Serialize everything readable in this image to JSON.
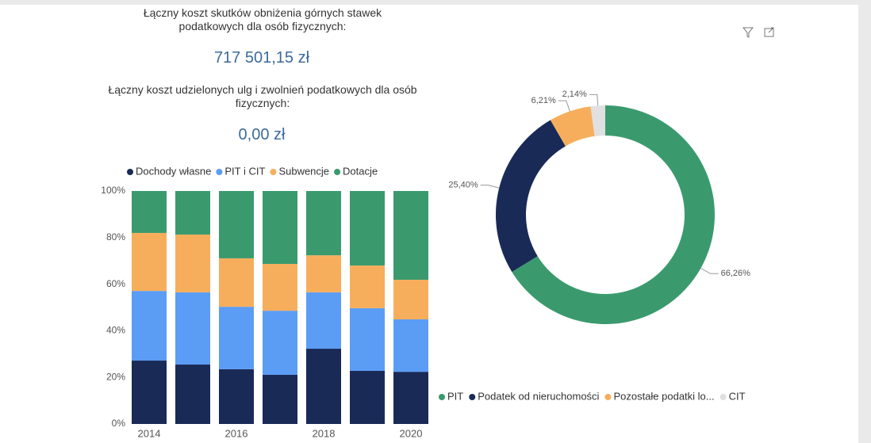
{
  "kpis": [
    {
      "label": "Łączny koszt skutków obniżenia górnych stawek podatkowych dla osób fizycznych:",
      "value": "717 501,15 zł"
    },
    {
      "label": "Łączny koszt udzielonych ulg i zwolnień podatkowych dla osób fizycznych:",
      "value": "0,00 zł"
    }
  ],
  "chart_data": [
    {
      "type": "stacked_bar",
      "categories": [
        "2014",
        null,
        "2016",
        null,
        "2018",
        null,
        "2020"
      ],
      "series": [
        {
          "name": "Dochody własne",
          "color": "#192a57",
          "values": [
            27.2,
            25.5,
            23.5,
            21.1,
            32.3,
            22.8,
            22.4
          ]
        },
        {
          "name": "PIT i CIT",
          "color": "#5b9cf5",
          "values": [
            29.9,
            31.0,
            26.8,
            27.5,
            24.2,
            26.9,
            22.5
          ]
        },
        {
          "name": "Subwencje",
          "color": "#f7ae5c",
          "values": [
            24.9,
            24.8,
            20.8,
            20.1,
            15.9,
            18.3,
            17.0
          ]
        },
        {
          "name": "Dotacje",
          "color": "#3a9a6e",
          "values": [
            18.0,
            18.7,
            28.9,
            31.3,
            27.6,
            32.0,
            38.1
          ]
        }
      ],
      "ylim": [
        0,
        100
      ],
      "yticks": [
        {
          "value": 0,
          "label": "0%"
        },
        {
          "value": 20,
          "label": "20%"
        },
        {
          "value": 40,
          "label": "40%"
        },
        {
          "value": 60,
          "label": "60%"
        },
        {
          "value": 80,
          "label": "80%"
        },
        {
          "value": 100,
          "label": "100%"
        }
      ]
    },
    {
      "type": "donut",
      "categories": [
        "PIT",
        "Podatek od nieruchomości",
        "Pozostałe podatki lo...",
        "CIT"
      ],
      "colors": [
        "#3a9a6e",
        "#192a57",
        "#f7ae5c",
        "#e0e0e0"
      ],
      "values": [
        66.26,
        25.4,
        6.21,
        2.14
      ],
      "value_labels": [
        "66,26%",
        "25,40%",
        "6,21%",
        "2,14%"
      ]
    }
  ]
}
